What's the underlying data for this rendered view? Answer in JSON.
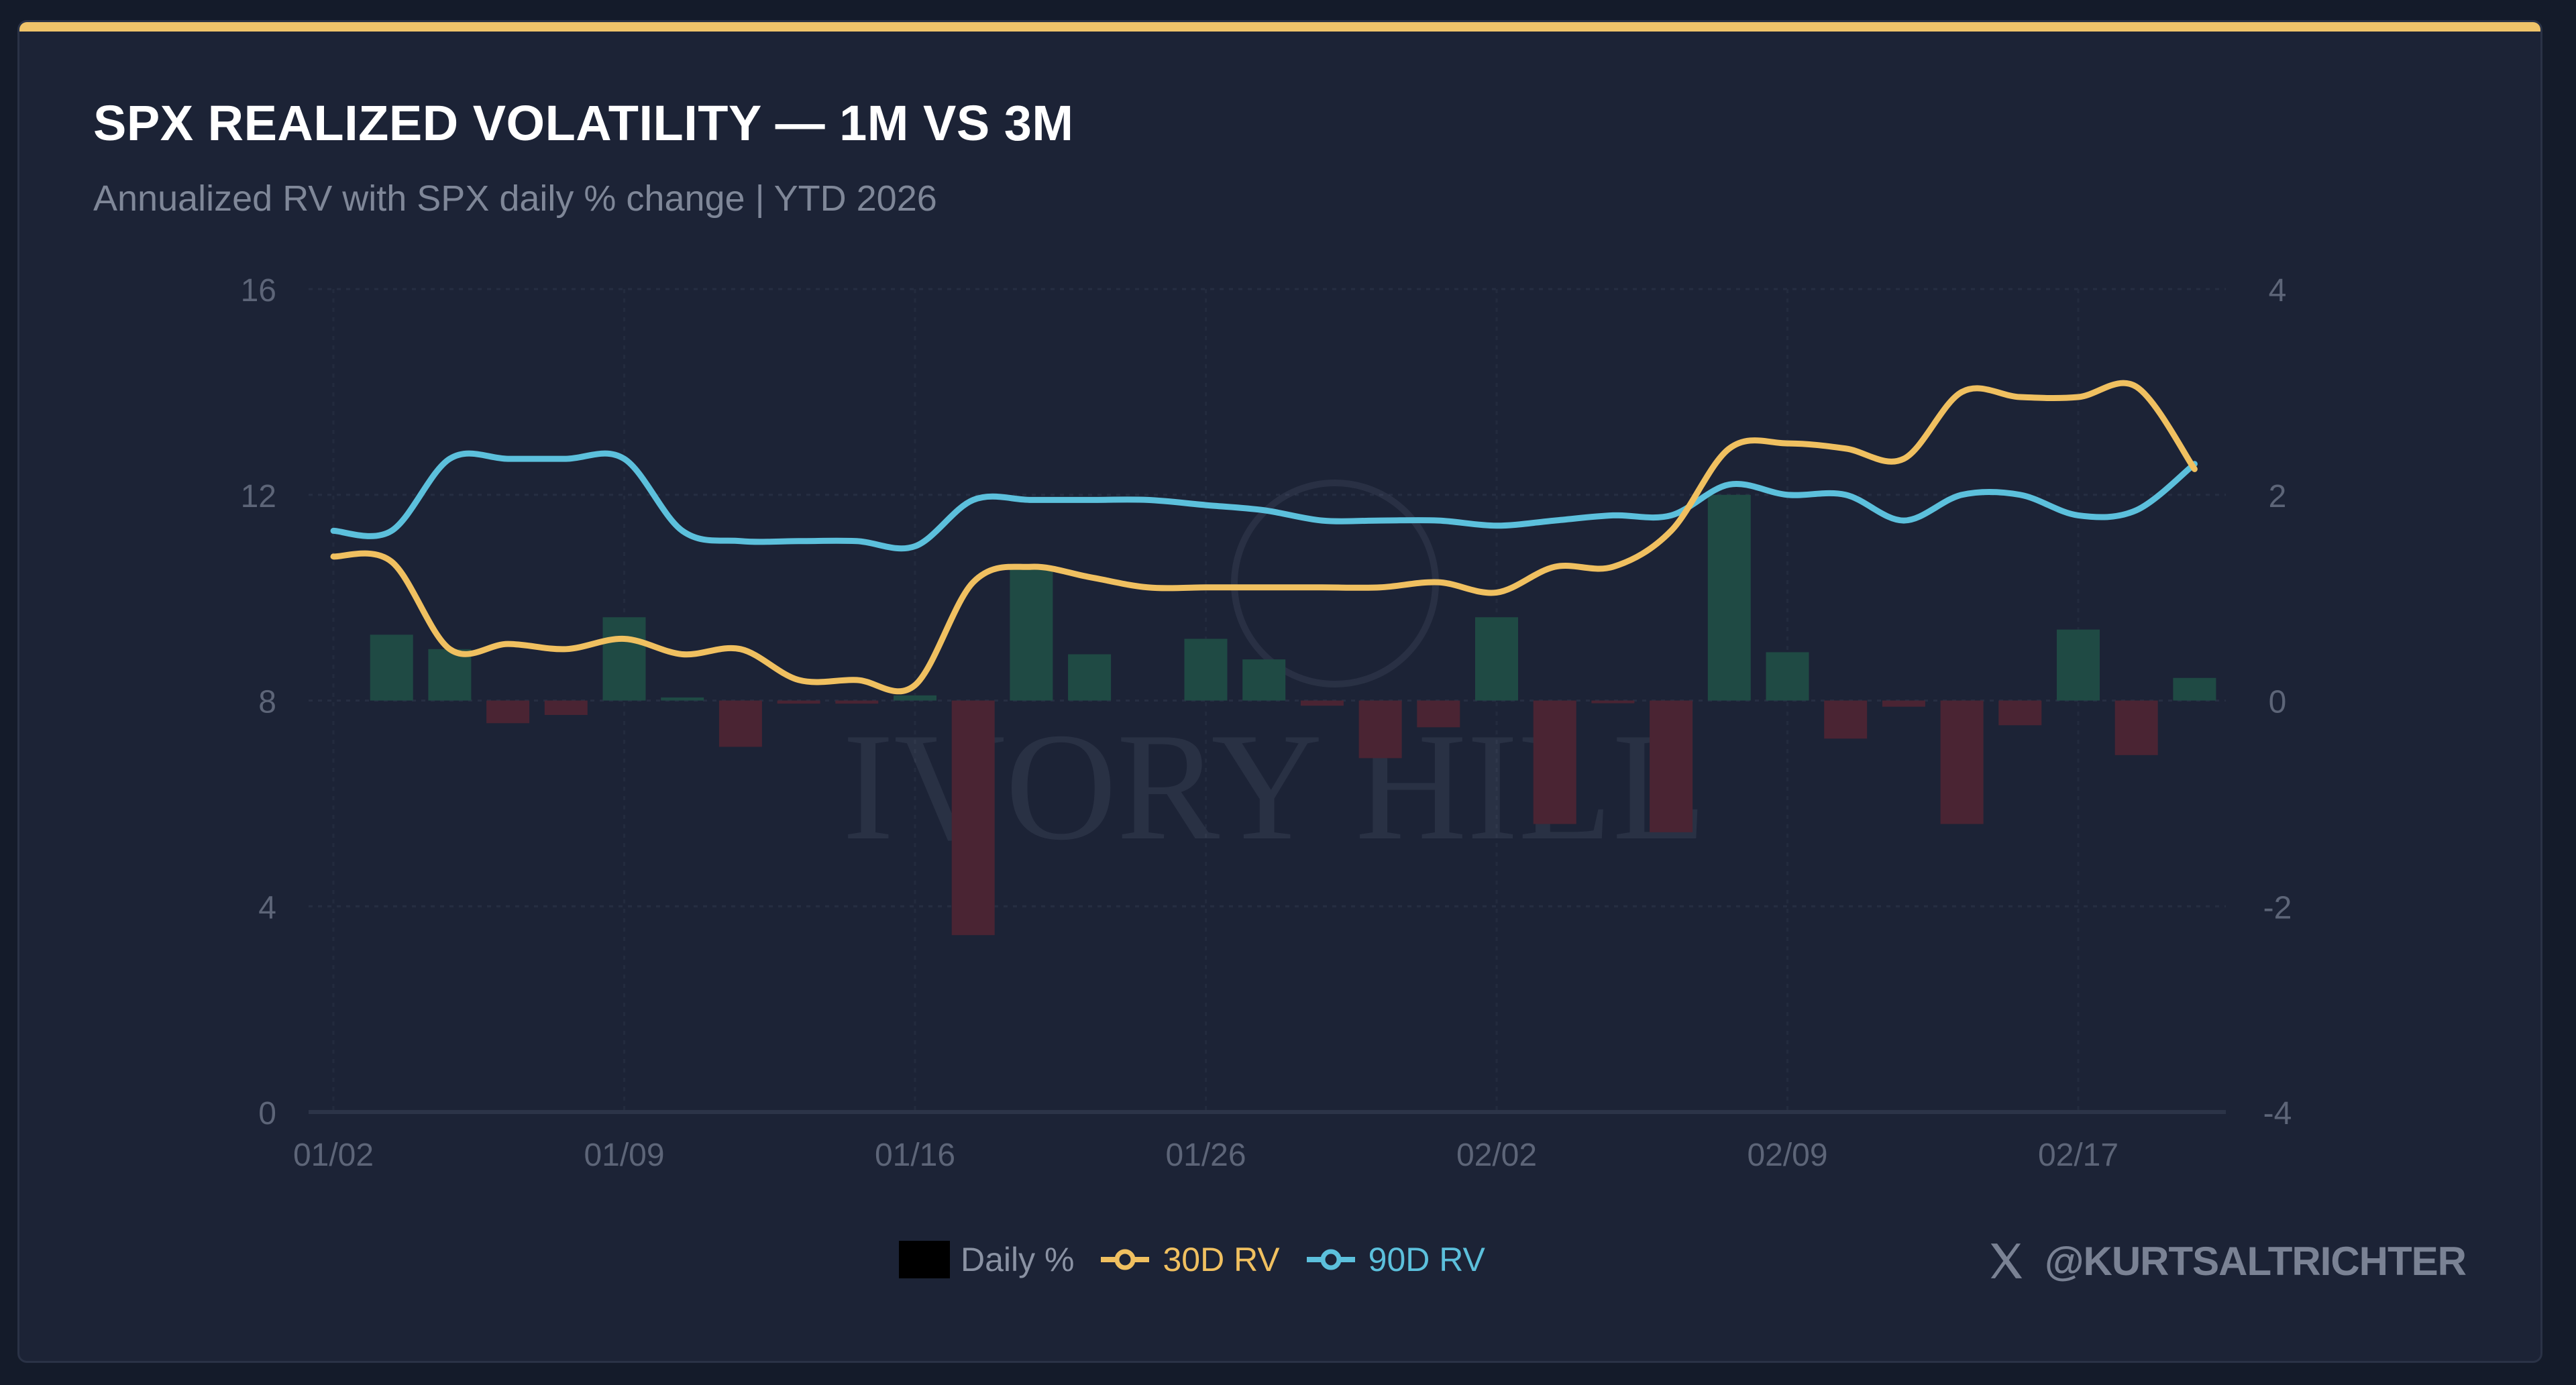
{
  "header": {
    "title": "SPX REALIZED VOLATILITY — 1M VS 3M",
    "subtitle": "Annualized RV with SPX daily % change | YTD 2026"
  },
  "colors": {
    "accent_bar": "#f0c46a",
    "rv30": "#f0c060",
    "rv90": "#5cc0dc",
    "bar_positive": "#1f4a44",
    "bar_negative": "#4a2433",
    "background": "#1c2336"
  },
  "legend": {
    "items": [
      {
        "label": "Daily %",
        "icon": "square-swatch"
      },
      {
        "label": "30D RV",
        "icon": "line-dot-marker"
      },
      {
        "label": "90D RV",
        "icon": "line-dot-marker"
      }
    ]
  },
  "watermark": {
    "brand": "IVORY HILL",
    "handle": "@KURTSALTRICHTER",
    "handle_icon": "x-logo-icon"
  },
  "chart_data": {
    "type": "line",
    "title": "SPX REALIZED VOLATILITY — 1M VS 3M",
    "subtitle": "Annualized RV with SPX daily % change | YTD 2026",
    "xlabel": "",
    "ylabel": "Annualized RV",
    "y2label": "Daily %",
    "ylim": [
      0,
      16
    ],
    "y2lim": [
      -4,
      4
    ],
    "yticks": [
      0,
      4,
      8,
      12,
      16
    ],
    "y2ticks": [
      -4,
      -2,
      0,
      2,
      4
    ],
    "xtick_labels": [
      "01/02",
      "01/09",
      "01/16",
      "01/26",
      "02/02",
      "02/09",
      "02/17"
    ],
    "grid": true,
    "legend_position": "bottom",
    "x": [
      "01/02",
      "01/05",
      "01/06",
      "01/07",
      "01/08",
      "01/09",
      "01/12",
      "01/13",
      "01/14",
      "01/15",
      "01/16",
      "01/20",
      "01/21",
      "01/22",
      "01/23",
      "01/26",
      "01/27",
      "01/28",
      "01/29",
      "01/30",
      "02/02",
      "02/03",
      "02/04",
      "02/05",
      "02/06",
      "02/09",
      "02/10",
      "02/11",
      "02/12",
      "02/13",
      "02/17",
      "02/18",
      "02/19"
    ],
    "series": [
      {
        "name": "Daily %",
        "type": "bar",
        "axis": "right",
        "values": [
          0.0,
          0.64,
          0.5,
          -0.22,
          -0.14,
          0.81,
          0.03,
          -0.45,
          -0.03,
          -0.03,
          0.05,
          -2.28,
          1.28,
          0.45,
          0.0,
          0.6,
          0.4,
          -0.05,
          -0.56,
          -0.26,
          0.81,
          -1.2,
          -0.02,
          -1.28,
          2.0,
          0.47,
          -0.37,
          -0.06,
          -1.2,
          -0.24,
          0.69,
          -0.53,
          0.22
        ]
      },
      {
        "name": "30D RV",
        "type": "line",
        "axis": "left",
        "values": [
          10.8,
          10.7,
          9.0,
          9.1,
          9.0,
          9.2,
          8.9,
          9.0,
          8.4,
          8.4,
          8.3,
          10.3,
          10.6,
          10.4,
          10.2,
          10.2,
          10.2,
          10.2,
          10.2,
          10.3,
          10.1,
          10.6,
          10.6,
          11.3,
          12.9,
          13.0,
          12.9,
          12.7,
          14.0,
          13.9,
          13.9,
          14.1,
          12.5
        ]
      },
      {
        "name": "90D RV",
        "type": "line",
        "axis": "left",
        "values": [
          11.3,
          11.3,
          12.7,
          12.7,
          12.7,
          12.7,
          11.3,
          11.1,
          11.1,
          11.1,
          11.0,
          11.9,
          11.9,
          11.9,
          11.9,
          11.8,
          11.7,
          11.5,
          11.5,
          11.5,
          11.4,
          11.5,
          11.6,
          11.6,
          12.2,
          12.0,
          12.0,
          11.5,
          12.0,
          12.0,
          11.6,
          11.7,
          12.6
        ]
      }
    ]
  }
}
